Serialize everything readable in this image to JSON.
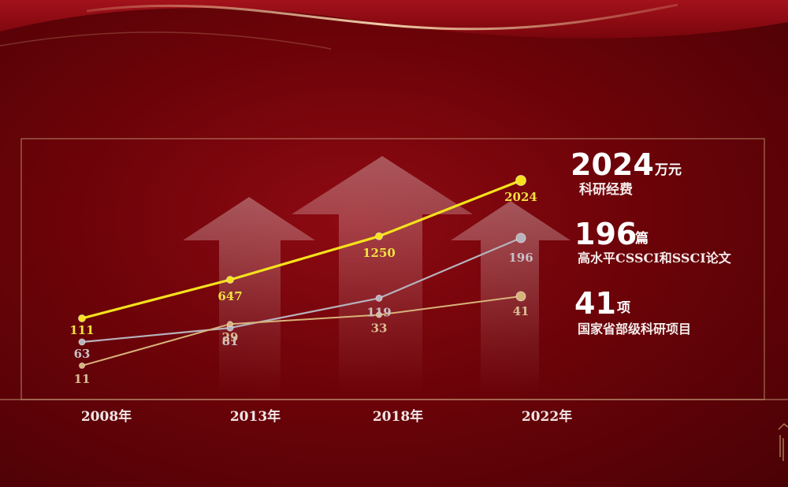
{
  "chart_data": {
    "type": "line",
    "categories": [
      "2008年",
      "2013年",
      "2018年",
      "2022年"
    ],
    "series": [
      {
        "key": "funding",
        "values": [
          111,
          647,
          1250,
          2024
        ],
        "color": "#f5e21c",
        "label_color": "#f2e040"
      },
      {
        "key": "papers",
        "values": [
          63,
          81,
          119,
          196
        ],
        "color": "#b7b2bc",
        "label_color": "#c9c0c8"
      },
      {
        "key": "projects",
        "values": [
          11,
          29,
          33,
          41
        ],
        "color": "#d8b27a",
        "label_color": "#d9bd94"
      }
    ],
    "grid": false
  },
  "legend": [
    {
      "key": "funding",
      "value": "2024",
      "unit": "万元",
      "description": "科研经费"
    },
    {
      "key": "papers",
      "value": "196",
      "unit": "篇",
      "description": "高水平CSSCI和SSCI论文"
    },
    {
      "key": "projects",
      "value": "41",
      "unit": "项",
      "description": "国家省部级科研项目"
    }
  ],
  "colors": {
    "background": "#6d0309",
    "frame": "#c9a07a",
    "gold_accent": "#e8c48a"
  }
}
